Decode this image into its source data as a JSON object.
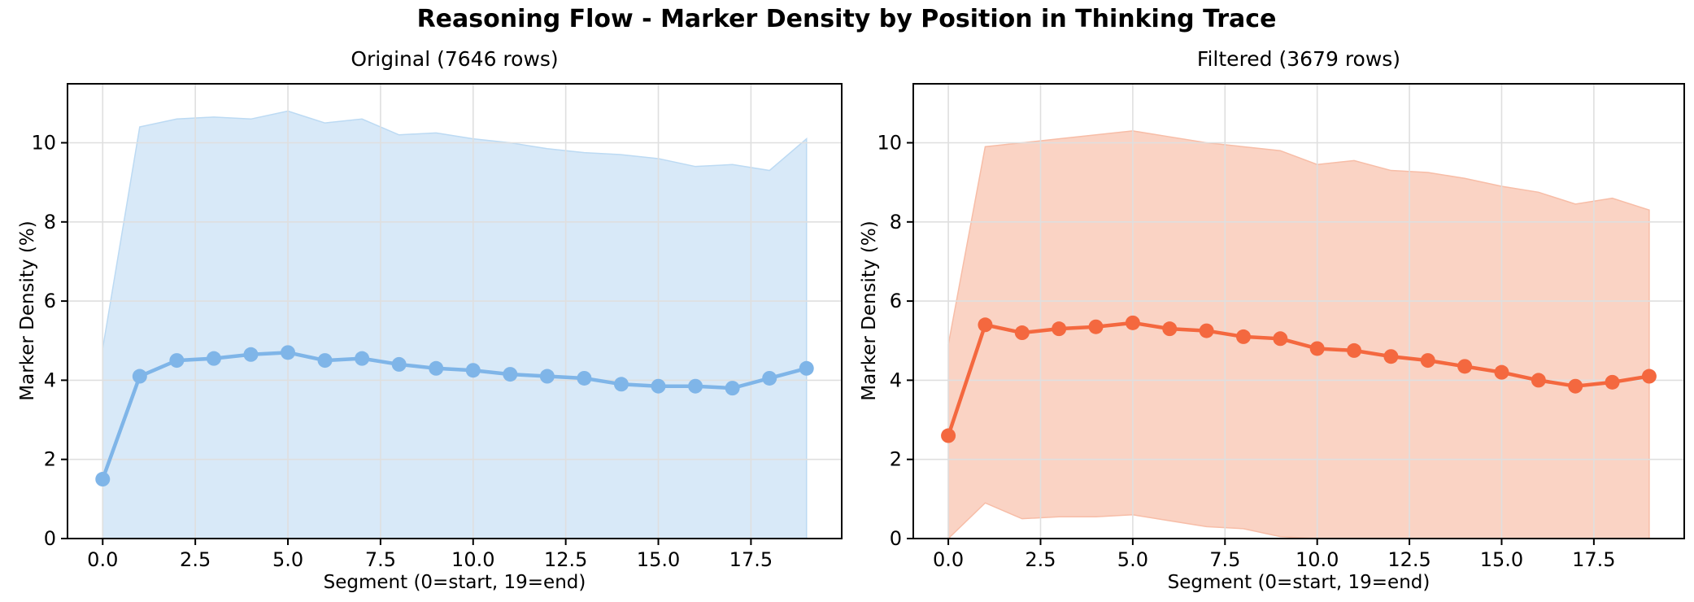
{
  "title": "Reasoning Flow - Marker Density by Position in Thinking Trace",
  "chart_data": [
    {
      "type": "line",
      "title": "Original (7646 rows)",
      "xlabel": "Segment (0=start, 19=end)",
      "ylabel": "Marker Density (%)",
      "x": [
        0,
        1,
        2,
        3,
        4,
        5,
        6,
        7,
        8,
        9,
        10,
        11,
        12,
        13,
        14,
        15,
        16,
        17,
        18,
        19
      ],
      "series": [
        {
          "name": "mean",
          "values": [
            1.5,
            4.1,
            4.5,
            4.55,
            4.65,
            4.7,
            4.5,
            4.55,
            4.4,
            4.3,
            4.25,
            4.15,
            4.1,
            4.05,
            3.9,
            3.85,
            3.85,
            3.8,
            4.05,
            4.3
          ]
        },
        {
          "name": "band_upper",
          "values": [
            4.8,
            10.4,
            10.6,
            10.65,
            10.6,
            10.8,
            10.5,
            10.6,
            10.2,
            10.25,
            10.1,
            10.0,
            9.85,
            9.75,
            9.7,
            9.6,
            9.4,
            9.45,
            9.3,
            10.1
          ]
        },
        {
          "name": "band_lower",
          "values": [
            0,
            0,
            0,
            0,
            0,
            0,
            0,
            0,
            0,
            0,
            0,
            0,
            0,
            0,
            0,
            0,
            0,
            0,
            0,
            0
          ]
        }
      ],
      "x_ticks": [
        "0.0",
        "2.5",
        "5.0",
        "7.5",
        "10.0",
        "12.5",
        "15.0",
        "17.5"
      ],
      "y_ticks": [
        "0",
        "2",
        "4",
        "6",
        "8",
        "10"
      ],
      "xlim": [
        -0.95,
        19.95
      ],
      "ylim": [
        0,
        11.49
      ],
      "grid": true,
      "legend": null,
      "colors": {
        "line": "#7FB5E8",
        "band": "#D8E9F8",
        "band_edge": "#BCDAF3"
      }
    },
    {
      "type": "line",
      "title": "Filtered (3679 rows)",
      "xlabel": "Segment (0=start, 19=end)",
      "ylabel": "Marker Density (%)",
      "x": [
        0,
        1,
        2,
        3,
        4,
        5,
        6,
        7,
        8,
        9,
        10,
        11,
        12,
        13,
        14,
        15,
        16,
        17,
        18,
        19
      ],
      "series": [
        {
          "name": "mean",
          "values": [
            2.6,
            5.4,
            5.2,
            5.3,
            5.35,
            5.45,
            5.3,
            5.25,
            5.1,
            5.05,
            4.8,
            4.75,
            4.6,
            4.5,
            4.35,
            4.2,
            4.0,
            3.85,
            3.95,
            4.1
          ]
        },
        {
          "name": "band_upper",
          "values": [
            4.9,
            9.9,
            10.0,
            10.1,
            10.2,
            10.3,
            10.15,
            10.0,
            9.9,
            9.8,
            9.45,
            9.55,
            9.3,
            9.25,
            9.1,
            8.9,
            8.75,
            8.45,
            8.6,
            8.3
          ]
        },
        {
          "name": "band_lower",
          "values": [
            0,
            0.9,
            0.5,
            0.55,
            0.55,
            0.6,
            0.45,
            0.3,
            0.25,
            0.05,
            0,
            0,
            0,
            0,
            0,
            0,
            0,
            0,
            0,
            0
          ]
        }
      ],
      "x_ticks": [
        "0.0",
        "2.5",
        "5.0",
        "7.5",
        "10.0",
        "12.5",
        "15.0",
        "17.5"
      ],
      "y_ticks": [
        "0",
        "2",
        "4",
        "6",
        "8",
        "10"
      ],
      "xlim": [
        -0.95,
        19.95
      ],
      "ylim": [
        0,
        11.49
      ],
      "grid": true,
      "legend": null,
      "colors": {
        "line": "#F4683F",
        "band": "#FAD3C4",
        "band_edge": "#F7BDA7"
      }
    }
  ]
}
